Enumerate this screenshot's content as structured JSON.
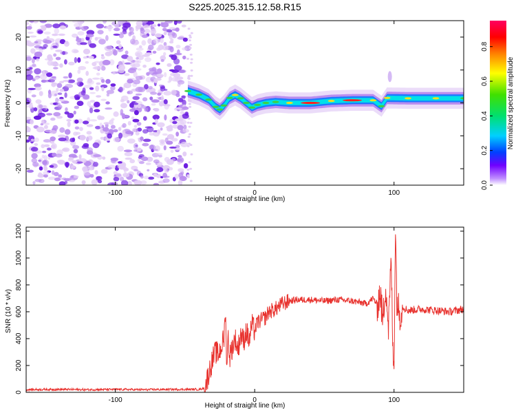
{
  "figure": {
    "title": "S225.2025.315.12.58.R15",
    "colors": {
      "snr_line": "#e8322e",
      "spec_light": "#e3cdf6",
      "spec_mid": "#b98cef",
      "spec_dark": "#6a1be0",
      "ridge_blue": "#1e78ff",
      "ridge_cyan": "#00e0e8",
      "ridge_green": "#40d040",
      "ridge_yellow": "#f0e020",
      "ridge_red": "#ff2020"
    }
  },
  "chart_data": [
    {
      "type": "heatmap",
      "name": "spectrogram",
      "xlabel": "Height of straight line (km)",
      "ylabel": "Frequency (Hz)",
      "xlim": [
        -164,
        150
      ],
      "ylim": [
        -25,
        25
      ],
      "xticks": [
        -100,
        0,
        100
      ],
      "yticks": [
        -20,
        -10,
        0,
        10,
        20
      ],
      "noise_region_x": [
        -164,
        -48
      ],
      "signal_ridge": [
        {
          "x": -48,
          "f": 3.6,
          "level": 0.35
        },
        {
          "x": -40,
          "f": 2.5,
          "level": 0.4
        },
        {
          "x": -33,
          "f": 1.0,
          "level": 0.45
        },
        {
          "x": -28,
          "f": -1.2,
          "level": 0.5
        },
        {
          "x": -25,
          "f": -2.0,
          "level": 0.55
        },
        {
          "x": -22,
          "f": -0.8,
          "level": 0.5
        },
        {
          "x": -18,
          "f": 1.5,
          "level": 0.65
        },
        {
          "x": -14,
          "f": 2.4,
          "level": 0.8
        },
        {
          "x": -10,
          "f": 1.4,
          "level": 0.6
        },
        {
          "x": -6,
          "f": 0.0,
          "level": 0.55
        },
        {
          "x": -2,
          "f": -1.4,
          "level": 0.6
        },
        {
          "x": 2,
          "f": -0.6,
          "level": 0.55
        },
        {
          "x": 8,
          "f": 0.0,
          "level": 0.5
        },
        {
          "x": 15,
          "f": 0.3,
          "level": 0.55
        },
        {
          "x": 25,
          "f": 0.0,
          "level": 0.75
        },
        {
          "x": 40,
          "f": 0.0,
          "level": 0.9
        },
        {
          "x": 55,
          "f": 0.6,
          "level": 0.8
        },
        {
          "x": 70,
          "f": 0.8,
          "level": 0.9
        },
        {
          "x": 85,
          "f": 0.8,
          "level": 0.75
        },
        {
          "x": 91,
          "f": -1.0,
          "level": 0.5
        },
        {
          "x": 95,
          "f": 1.5,
          "level": 0.7
        },
        {
          "x": 110,
          "f": 1.4,
          "level": 0.75
        },
        {
          "x": 130,
          "f": 1.4,
          "level": 0.7
        },
        {
          "x": 150,
          "f": 1.4,
          "level": 0.6
        }
      ],
      "colorbar": {
        "label": "Normalized spectral amplitude",
        "range": [
          0.0,
          0.95
        ],
        "ticks": [
          0.0,
          0.2,
          0.4,
          0.6,
          0.8
        ],
        "tick_labels": [
          "0.0",
          "0.2",
          "0.4",
          "0.6",
          "0.8"
        ],
        "colormap": [
          "#ffffff",
          "#8000ff",
          "#0040ff",
          "#00d8ff",
          "#00e070",
          "#40e000",
          "#ffff00",
          "#ff8000",
          "#ff0000",
          "#ff0080"
        ]
      }
    },
    {
      "type": "line",
      "name": "snr",
      "xlabel": "Height of straight line (km)",
      "ylabel": "SNR (10 * v/v)",
      "xlim": [
        -164,
        150
      ],
      "ylim": [
        0,
        1230
      ],
      "xticks": [
        -100,
        0,
        100
      ],
      "yticks": [
        0,
        200,
        400,
        600,
        800,
        1000,
        1200
      ],
      "series": [
        {
          "name": "SNR",
          "x": [
            -164,
            -140,
            -120,
            -100,
            -80,
            -60,
            -40,
            -36,
            -34,
            -32,
            -30,
            -28,
            -26,
            -24,
            -22,
            -21,
            -20,
            -19,
            -18,
            -16,
            -14,
            -12,
            -10,
            -8,
            -6,
            -4,
            -2,
            0,
            2,
            5,
            8,
            10,
            15,
            20,
            25,
            30,
            40,
            50,
            60,
            70,
            80,
            85,
            88,
            90,
            92,
            94,
            96,
            98,
            99,
            100,
            101,
            102,
            104,
            106,
            110,
            120,
            130,
            140,
            150
          ],
          "y": [
            20,
            22,
            20,
            22,
            20,
            22,
            22,
            30,
            100,
            180,
            250,
            300,
            280,
            340,
            400,
            600,
            200,
            420,
            260,
            340,
            400,
            320,
            440,
            380,
            460,
            380,
            500,
            460,
            520,
            540,
            560,
            600,
            620,
            660,
            680,
            690,
            690,
            680,
            690,
            680,
            660,
            700,
            650,
            750,
            520,
            820,
            480,
            1000,
            350,
            200,
            1230,
            700,
            580,
            640,
            610,
            620,
            610,
            600,
            620
          ]
        }
      ]
    }
  ]
}
